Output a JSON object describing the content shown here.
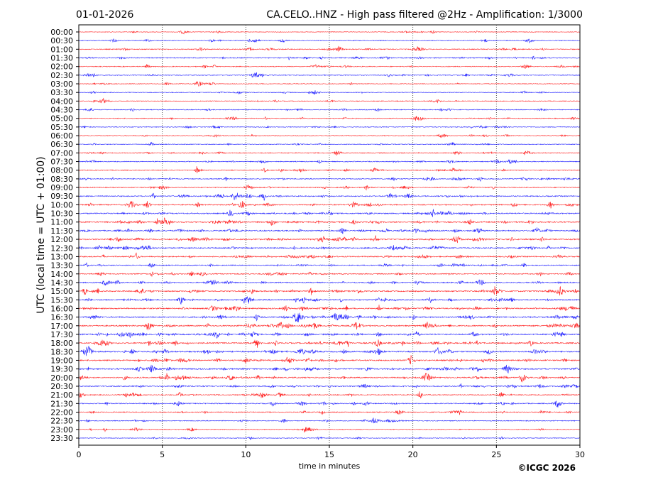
{
  "chart_data": {
    "type": "line",
    "title_left": "01-01-2026",
    "title": "CA.CELO..HNZ - High pass filtered @2Hz - Amplification: 1/3000",
    "xlabel": "time in minutes",
    "ylabel": "UTC (local time = UTC + 01:00)",
    "xlim": [
      0,
      30
    ],
    "xticks": [
      "0",
      "5",
      "10",
      "15",
      "20",
      "25",
      "30"
    ],
    "grid": "vertical dotted at 5-minute intervals",
    "rows": [
      "00:00",
      "00:30",
      "01:00",
      "01:30",
      "02:00",
      "02:30",
      "03:00",
      "03:30",
      "04:00",
      "04:30",
      "05:00",
      "05:30",
      "06:00",
      "06:30",
      "07:00",
      "07:30",
      "08:00",
      "08:30",
      "09:00",
      "09:30",
      "10:00",
      "10:30",
      "11:00",
      "11:30",
      "12:00",
      "12:30",
      "13:00",
      "13:30",
      "14:00",
      "14:30",
      "15:00",
      "15:30",
      "16:00",
      "16:30",
      "17:00",
      "17:30",
      "18:00",
      "18:30",
      "19:00",
      "19:30",
      "20:00",
      "20:30",
      "21:00",
      "21:30",
      "22:00",
      "22:30",
      "23:00",
      "23:30"
    ],
    "row_activity": [
      0.1,
      0.2,
      0.4,
      0.4,
      0.3,
      0.3,
      0.15,
      0.15,
      0.2,
      0.25,
      0.25,
      0.25,
      0.2,
      0.2,
      0.35,
      0.3,
      0.35,
      0.4,
      0.4,
      0.55,
      0.6,
      0.65,
      0.7,
      0.7,
      0.75,
      0.7,
      0.6,
      0.5,
      0.5,
      0.6,
      0.7,
      0.7,
      0.75,
      0.8,
      0.8,
      0.75,
      0.8,
      0.8,
      0.75,
      0.75,
      0.7,
      0.55,
      0.45,
      0.45,
      0.4,
      0.3,
      0.2,
      0.15
    ],
    "series_colors": [
      "#ff0000",
      "#0000ff"
    ],
    "copyright": "©ICGC 2026"
  }
}
